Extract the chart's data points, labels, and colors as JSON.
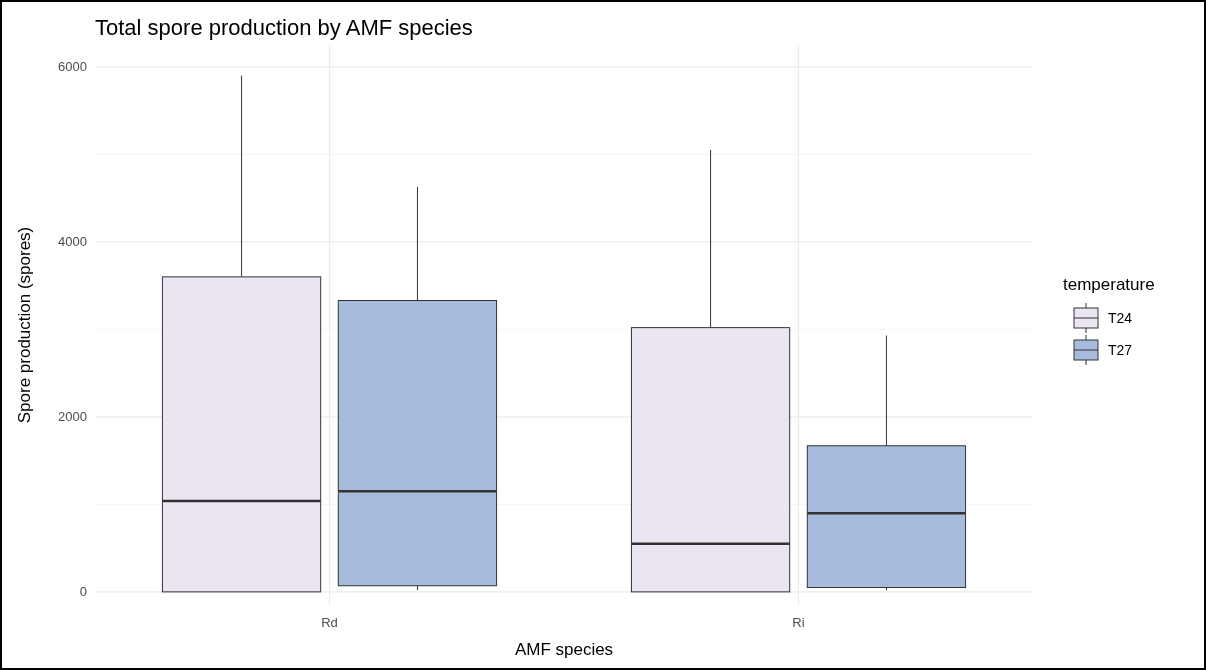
{
  "chart_data": {
    "type": "box",
    "title": "Total spore production by AMF species",
    "xlabel": "AMF species",
    "ylabel": "Spore production (spores)",
    "legend_title": "temperature",
    "categories": [
      "Rd",
      "Ri"
    ],
    "series": [
      {
        "name": "T24",
        "color": "#ebe5f1",
        "boxes": [
          {
            "low": 0,
            "q1": 0,
            "median": 1040,
            "q3": 3600,
            "high": 5900
          },
          {
            "low": 0,
            "q1": 0,
            "median": 550,
            "q3": 3020,
            "high": 5050
          }
        ]
      },
      {
        "name": "T27",
        "color": "#a7bcdc",
        "boxes": [
          {
            "low": 20,
            "q1": 70,
            "median": 1150,
            "q3": 3330,
            "high": 4630
          },
          {
            "low": 20,
            "q1": 50,
            "median": 900,
            "q3": 1670,
            "high": 2930
          }
        ]
      }
    ],
    "ylim": [
      -150,
      6250
    ],
    "yticks": [
      0,
      {
        "value": 1000,
        "label": null
      },
      2000,
      {
        "value": 3000,
        "label": null
      },
      4000,
      {
        "value": 5000,
        "label": null
      },
      6000
    ],
    "grid": true,
    "legend": "right"
  }
}
